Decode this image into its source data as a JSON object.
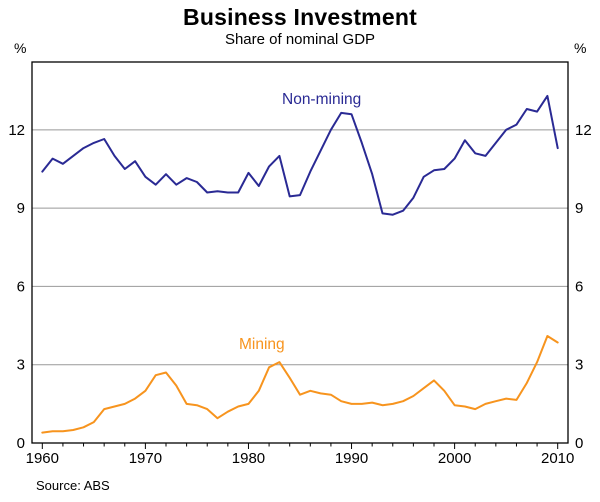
{
  "footer": {
    "source": "Source: ABS"
  },
  "chart_data": {
    "type": "line",
    "title": "Business Investment",
    "subtitle": "Share of nominal GDP",
    "y_unit": "%",
    "grid": "horizontal",
    "legend_position": "inline-annotations",
    "xlim": [
      1959,
      2011
    ],
    "ylim": [
      0,
      14.6
    ],
    "xticks": [
      1960,
      1970,
      1980,
      1990,
      2000,
      2010
    ],
    "yticks": [
      0,
      3,
      6,
      9,
      12
    ],
    "grid_color": "#999999",
    "frame_color": "#000000",
    "text_color": "#000000",
    "x": [
      1960,
      1961,
      1962,
      1963,
      1964,
      1965,
      1966,
      1967,
      1968,
      1969,
      1970,
      1971,
      1972,
      1973,
      1974,
      1975,
      1976,
      1977,
      1978,
      1979,
      1980,
      1981,
      1982,
      1983,
      1984,
      1985,
      1986,
      1987,
      1988,
      1989,
      1990,
      1991,
      1992,
      1993,
      1994,
      1995,
      1996,
      1997,
      1998,
      1999,
      2000,
      2001,
      2002,
      2003,
      2004,
      2005,
      2006,
      2007,
      2008,
      2009,
      2010
    ],
    "series": [
      {
        "name": "Non-mining",
        "color": "#2a2a94",
        "values": [
          10.4,
          10.9,
          10.7,
          11.0,
          11.3,
          11.5,
          11.65,
          11.0,
          10.5,
          10.8,
          10.2,
          9.9,
          10.3,
          9.9,
          10.15,
          10.0,
          9.6,
          9.65,
          9.6,
          9.6,
          10.35,
          9.85,
          10.6,
          11.0,
          9.45,
          9.5,
          10.4,
          11.2,
          12.0,
          12.65,
          12.6,
          11.5,
          10.3,
          8.8,
          8.75,
          8.9,
          9.4,
          10.2,
          10.45,
          10.5,
          10.9,
          11.6,
          11.1,
          11.0,
          11.5,
          12.0,
          12.2,
          12.8,
          12.7,
          13.3,
          11.3
        ]
      },
      {
        "name": "Mining",
        "color": "#f7941e",
        "values": [
          0.4,
          0.45,
          0.45,
          0.5,
          0.6,
          0.8,
          1.3,
          1.4,
          1.5,
          1.7,
          2.0,
          2.6,
          2.7,
          2.2,
          1.5,
          1.45,
          1.3,
          0.95,
          1.2,
          1.4,
          1.5,
          2.0,
          2.9,
          3.1,
          2.5,
          1.85,
          2.0,
          1.9,
          1.85,
          1.6,
          1.5,
          1.5,
          1.55,
          1.45,
          1.5,
          1.6,
          1.8,
          2.1,
          2.4,
          2.0,
          1.45,
          1.4,
          1.3,
          1.5,
          1.6,
          1.7,
          1.65,
          2.3,
          3.1,
          4.1,
          3.85
        ]
      }
    ],
    "annotations": [
      {
        "text": "Non-mining",
        "x": 1987.1,
        "y": 13.0,
        "color": "#2a2a94"
      },
      {
        "text": "Mining",
        "x": 1981.3,
        "y": 3.6,
        "color": "#f7941e"
      }
    ]
  }
}
